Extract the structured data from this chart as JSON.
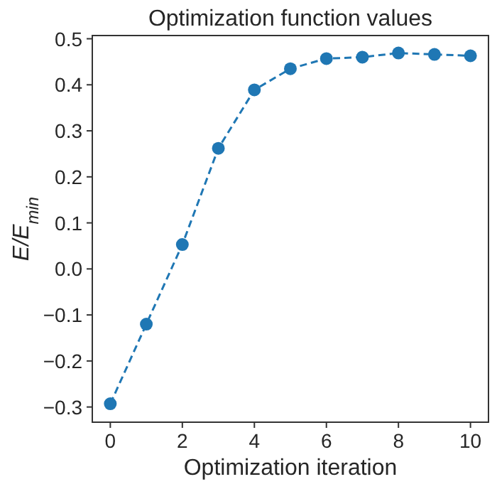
{
  "chart_data": {
    "type": "line",
    "title": "Optimization function values",
    "xlabel": "Optimization iteration",
    "ylabel": "E/E$_{min}$",
    "x": [
      0,
      1,
      2,
      3,
      4,
      5,
      6,
      7,
      8,
      9,
      10
    ],
    "series": [
      {
        "color": "#1f77b4",
        "values": [
          -0.293,
          -0.12,
          0.053,
          0.262,
          0.389,
          0.435,
          0.457,
          0.46,
          0.469,
          0.466,
          0.463
        ]
      }
    ],
    "xlim": [
      -0.5,
      10.5
    ],
    "xticks": [
      0,
      2,
      4,
      6,
      8,
      10
    ],
    "ylim": [
      -0.333,
      0.507
    ],
    "yticks": [
      -0.3,
      -0.2,
      -0.1,
      {
        "value": 0,
        "label": "0.0"
      },
      0.1,
      0.2,
      0.3,
      0.4,
      0.5
    ],
    "marker": "circle",
    "line_style": "dashed",
    "grid": false
  }
}
